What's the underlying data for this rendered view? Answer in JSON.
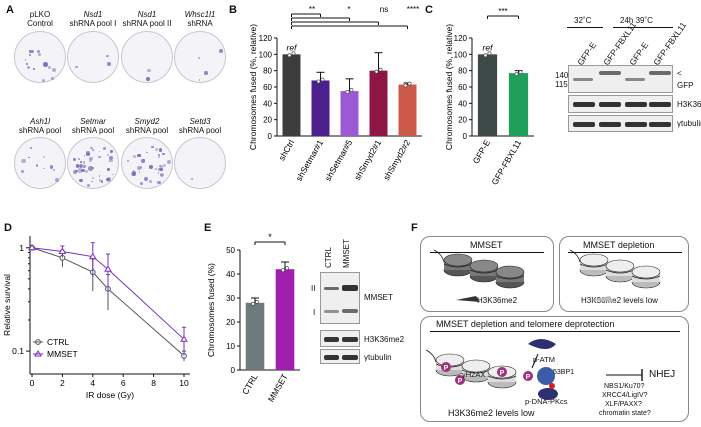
{
  "panelA": {
    "letter": "A",
    "row1": [
      {
        "line1": "pLKO",
        "line2": "Control",
        "italic1": false
      },
      {
        "line1": "Nsd1",
        "line2": "shRNA pool I",
        "italic1": true
      },
      {
        "line1": "Nsd1",
        "line2": "shRNA pool II",
        "italic1": true
      },
      {
        "line1": "Whsc1l1",
        "line2": "shRNA",
        "italic1": true
      }
    ],
    "row2": [
      {
        "line1": "Ash1l",
        "line2": "shRNA pool",
        "italic1": true
      },
      {
        "line1": "Setmar",
        "line2": "shRNA pool",
        "italic1": true
      },
      {
        "line1": "Smyd2",
        "line2": "shRNA pool",
        "italic1": true
      },
      {
        "line1": "Setd3",
        "line2": "shRNA pool",
        "italic1": true
      }
    ]
  },
  "panelB": {
    "letter": "B",
    "ylabel": "Chromosomes fused (%, relative)",
    "ref": "ref",
    "sig": [
      "**",
      "*",
      "ns",
      "****"
    ]
  },
  "panelC": {
    "letter": "C",
    "ylabel": "Chromosomes fused (%, relative)",
    "ref": "ref",
    "sig": "***",
    "blot": {
      "temps": [
        "32˚C",
        "24h 39˚C"
      ],
      "lanes": [
        "GFP-E",
        "GFP-FBXL11",
        "GFP-E",
        "GFP-FBXL11"
      ],
      "mw": [
        "140",
        "115"
      ],
      "arrow": "<",
      "labels": [
        "GFP",
        "H3K36me2",
        "γtubulin"
      ]
    }
  },
  "panelD": {
    "letter": "D",
    "legend": [
      "CTRL",
      "MMSET"
    ]
  },
  "panelE": {
    "letter": "E",
    "ylabel": "Chromosomes fused (%)",
    "sig": "*",
    "blot": {
      "lanes": [
        "CTRL",
        "MMSET"
      ],
      "markers": [
        "II",
        "I"
      ],
      "labels": [
        "MMSET",
        "H3K36me2",
        "γtubulin"
      ]
    }
  },
  "panelF": {
    "letter": "F",
    "box1_title": "MMSET",
    "box1_caption": "H3K36me2",
    "box2_title": "MMSET depletion",
    "box2_caption": "H3K36me2 levels low",
    "box3_title": "MMSET depletion and telomere deprotection",
    "gh2ax": "γH2AX",
    "patm": "p-ATM",
    "bp53": "53BP1",
    "pdna": "p-DNA-PKcs",
    "p": "P",
    "nhej": "NHEJ",
    "factors": [
      "NBS1/Ku70?",
      "XRCC4/LigIV?",
      "XLF/PAXX?",
      "chromatin state?"
    ],
    "box3_caption": "H3K36me2 levels low"
  },
  "chart_data": [
    {
      "type": "bar",
      "panel": "B",
      "categories": [
        "shCtrl",
        "shSetmar#1",
        "shSetmar#5",
        "shSmyd2#1",
        "shSmyd2#2"
      ],
      "values": [
        100,
        68,
        55,
        80,
        63
      ],
      "errors": [
        0,
        10,
        15,
        22,
        2
      ],
      "colors": [
        "#3d3d3d",
        "#4b1f8c",
        "#9b59d6",
        "#8e1647",
        "#cc5a4a"
      ],
      "ylabel": "Chromosomes fused (%, relative)",
      "ylim": [
        0,
        120
      ],
      "yticks": [
        0,
        20,
        40,
        60,
        80,
        100,
        120
      ]
    },
    {
      "type": "bar",
      "panel": "C",
      "categories": [
        "GFP-E",
        "GFP-FBXL11"
      ],
      "values": [
        100,
        77
      ],
      "errors": [
        0,
        3
      ],
      "colors": [
        "#3d4a47",
        "#1fa05a"
      ],
      "ylabel": "Chromosomes fused (%, relative)",
      "ylim": [
        0,
        120
      ],
      "yticks": [
        0,
        20,
        40,
        60,
        80,
        100,
        120
      ]
    },
    {
      "type": "line",
      "panel": "D",
      "xlabel": "IR dose (Gy)",
      "ylabel": "Relative survival",
      "x": [
        0,
        2,
        4,
        5,
        10
      ],
      "series": [
        {
          "name": "CTRL",
          "values": [
            1.0,
            0.8,
            0.58,
            0.4,
            0.09
          ],
          "errors": [
            0,
            0.15,
            0.2,
            0.15,
            0.01
          ],
          "color": "#555555"
        },
        {
          "name": "MMSET",
          "values": [
            1.0,
            0.92,
            0.82,
            0.62,
            0.13
          ],
          "errors": [
            0,
            0.12,
            0.3,
            0.25,
            0.04
          ],
          "color": "#7b2fbe"
        }
      ],
      "xticks": [
        0,
        2,
        4,
        6,
        8,
        10
      ],
      "yscale": "log",
      "yticks": [
        0.1,
        1
      ],
      "ylim": [
        0.06,
        1.3
      ]
    },
    {
      "type": "bar",
      "panel": "E",
      "categories": [
        "CTRL",
        "MMSET"
      ],
      "values": [
        28,
        42
      ],
      "errors": [
        2,
        3
      ],
      "colors": [
        "#6d7b7a",
        "#a01fb0"
      ],
      "ylabel": "Chromosomes fused (%)",
      "ylim": [
        0,
        50
      ],
      "yticks": [
        0,
        10,
        20,
        30,
        40,
        50
      ]
    }
  ]
}
